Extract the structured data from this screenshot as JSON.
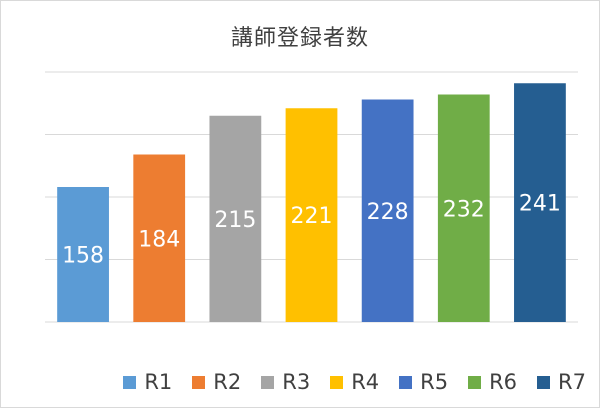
{
  "chart_data": {
    "type": "bar",
    "title": "講師登録者数",
    "categories": [
      "R1",
      "R2",
      "R3",
      "R4",
      "R5",
      "R6",
      "R7"
    ],
    "values": [
      158,
      184,
      215,
      221,
      228,
      232,
      241
    ],
    "colors": [
      "#5b9bd5",
      "#ed7d31",
      "#a5a5a5",
      "#ffc000",
      "#4472c4",
      "#70ad47",
      "#255e91"
    ],
    "ylim": [
      50,
      250
    ],
    "grid": true,
    "legend_position": "bottom",
    "data_labels": true
  }
}
